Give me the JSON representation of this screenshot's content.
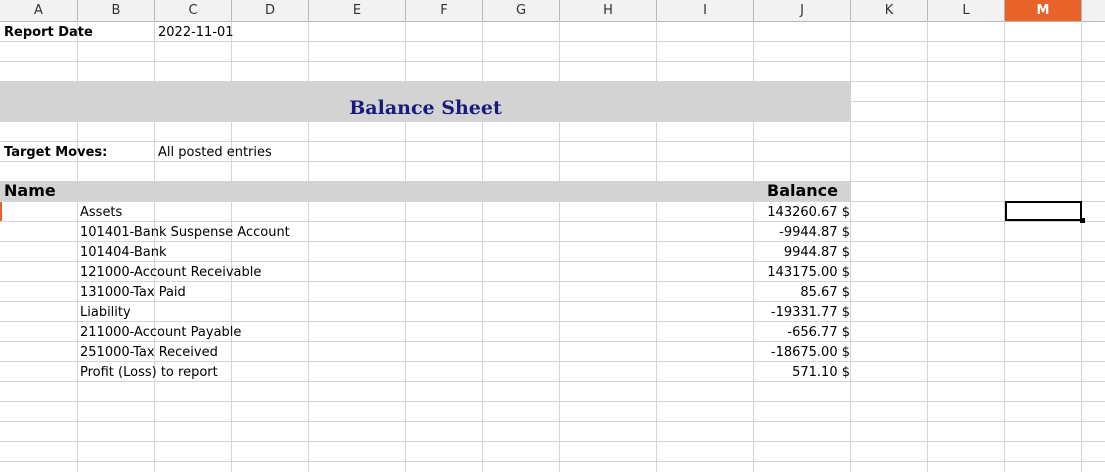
{
  "columns": [
    "A",
    "B",
    "C",
    "D",
    "E",
    "F",
    "G",
    "H",
    "I",
    "J",
    "K",
    "L",
    "M"
  ],
  "selected_column": "M",
  "report": {
    "date_label": "Report Date",
    "date_value": "2022-11-01",
    "title": "Balance Sheet",
    "moves_label": "Target Moves:",
    "moves_value": "All posted entries",
    "name_header": "Name",
    "balance_header": "Balance"
  },
  "rows": [
    {
      "name": "Assets",
      "balance": "143260.67 $"
    },
    {
      "name": "101401-Bank Suspense Account",
      "balance": "-9944.87 $"
    },
    {
      "name": "101404-Bank",
      "balance": "9944.87 $"
    },
    {
      "name": "121000-Account Receivable",
      "balance": "143175.00 $"
    },
    {
      "name": "131000-Tax Paid",
      "balance": "85.67 $"
    },
    {
      "name": "Liability",
      "balance": "-19331.77 $"
    },
    {
      "name": "211000-Account Payable",
      "balance": "-656.77 $"
    },
    {
      "name": "251000-Tax Received",
      "balance": "-18675.00 $"
    },
    {
      "name": "Profit (Loss) to report",
      "balance": "571.10 $"
    }
  ]
}
